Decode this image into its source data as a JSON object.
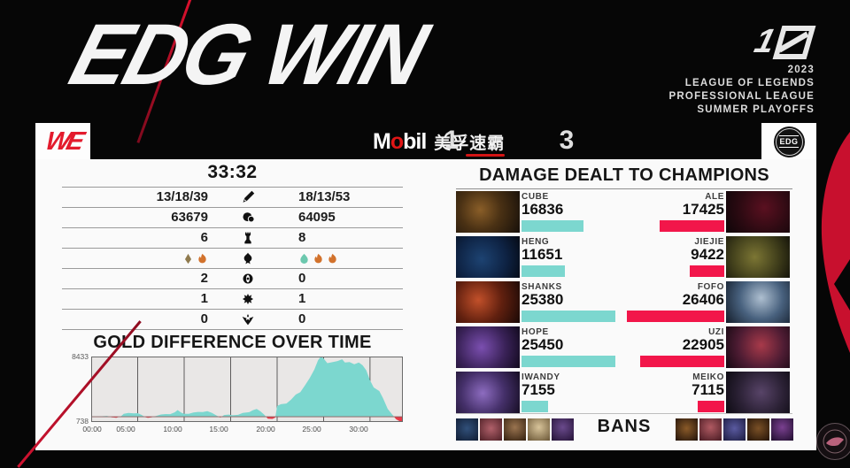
{
  "header": {
    "title": "EDG WIN",
    "anniversary_logo": "10",
    "event_lines": [
      "2023",
      "LEAGUE OF LEGENDS",
      "PROFESSIONAL LEAGUE",
      "SUMMER PLAYOFFS"
    ]
  },
  "scoreboard": {
    "left_team": "WE",
    "left_score": "1",
    "sponsor": {
      "m": "M",
      "o": "o",
      "bil": "bil",
      "cn": "美孚速霸"
    },
    "right_score": "3",
    "right_team": "EDG"
  },
  "match_stats": {
    "game_time": "33:32",
    "rows": [
      {
        "icon": "sword-icon",
        "stat": "kda",
        "left": "13/18/39",
        "right": "18/13/53"
      },
      {
        "icon": "gold-icon",
        "stat": "gold",
        "left": "63679",
        "right": "64095"
      },
      {
        "icon": "tower-icon",
        "stat": "towers",
        "left": "6",
        "right": "8"
      },
      {
        "icon": "dragon-icon",
        "stat": "drakes",
        "left_drakes": [
          "mountain",
          "infernal"
        ],
        "right_drakes": [
          "ocean",
          "infernal",
          "infernal"
        ]
      },
      {
        "icon": "herald-icon",
        "stat": "heralds",
        "left": "2",
        "right": "0"
      },
      {
        "icon": "baron-icon",
        "stat": "barons",
        "left": "1",
        "right": "1"
      },
      {
        "icon": "elder-icon",
        "stat": "elders",
        "left": "0",
        "right": "0"
      }
    ],
    "drake_colors": {
      "mountain": "#8f7a4e",
      "infernal": "#d2722c",
      "ocean": "#6cc8ae"
    }
  },
  "chart_data": {
    "type": "area",
    "title": "GOLD DIFFERENCE OVER TIME",
    "ylabel": "gold difference",
    "y_max_label": "8433",
    "y_min_label": "738",
    "ylim": [
      -738,
      8433
    ],
    "x_range_minutes": [
      0,
      33.53
    ],
    "x_ticks": [
      "00:00",
      "05:00",
      "10:00",
      "15:00",
      "20:00",
      "25:00",
      "30:00"
    ],
    "grid": true,
    "positive_color": "#7cd7cf",
    "negative_color": "#e83948",
    "points": [
      [
        0,
        30
      ],
      [
        1,
        60
      ],
      [
        1.7,
        120
      ],
      [
        2.2,
        -80
      ],
      [
        2.7,
        -140
      ],
      [
        3.2,
        60
      ],
      [
        3.5,
        420
      ],
      [
        4,
        520
      ],
      [
        4.6,
        480
      ],
      [
        5,
        500
      ],
      [
        5.4,
        260
      ],
      [
        5.8,
        -60
      ],
      [
        6.1,
        -160
      ],
      [
        6.5,
        -80
      ],
      [
        7,
        120
      ],
      [
        7.5,
        320
      ],
      [
        8,
        380
      ],
      [
        8.5,
        360
      ],
      [
        9,
        620
      ],
      [
        9.3,
        940
      ],
      [
        9.7,
        560
      ],
      [
        10,
        420
      ],
      [
        10.5,
        420
      ],
      [
        11,
        600
      ],
      [
        11.5,
        680
      ],
      [
        12,
        660
      ],
      [
        12.5,
        780
      ],
      [
        13,
        520
      ],
      [
        13.5,
        160
      ],
      [
        13.9,
        -120
      ],
      [
        14.3,
        240
      ],
      [
        14.8,
        300
      ],
      [
        15.2,
        200
      ],
      [
        15.8,
        260
      ],
      [
        16.3,
        520
      ],
      [
        17,
        640
      ],
      [
        17.4,
        920
      ],
      [
        17.8,
        1080
      ],
      [
        18.2,
        760
      ],
      [
        18.6,
        300
      ],
      [
        19,
        -280
      ],
      [
        19.5,
        -300
      ],
      [
        19.8,
        -120
      ],
      [
        20,
        1500
      ],
      [
        20.4,
        1750
      ],
      [
        21,
        1850
      ],
      [
        21.5,
        2400
      ],
      [
        22,
        3100
      ],
      [
        22.5,
        3450
      ],
      [
        23,
        4400
      ],
      [
        23.5,
        5400
      ],
      [
        24,
        6600
      ],
      [
        24.4,
        7900
      ],
      [
        24.7,
        8433
      ],
      [
        25,
        8150
      ],
      [
        25.4,
        7500
      ],
      [
        26,
        7650
      ],
      [
        26.5,
        7800
      ],
      [
        27,
        8050
      ],
      [
        27.3,
        7600
      ],
      [
        27.8,
        7650
      ],
      [
        28.3,
        7350
      ],
      [
        28.8,
        7600
      ],
      [
        29.2,
        7200
      ],
      [
        29.6,
        6500
      ],
      [
        30,
        5100
      ],
      [
        30.4,
        4100
      ],
      [
        31,
        3600
      ],
      [
        31.4,
        2600
      ],
      [
        31.9,
        1100
      ],
      [
        32.4,
        300
      ],
      [
        32.8,
        -350
      ],
      [
        33.2,
        -650
      ],
      [
        33.53,
        -738
      ]
    ]
  },
  "damage": {
    "title": "DAMAGE DEALT TO CHAMPIONS",
    "left_color": "#7cd7cf",
    "right_color": "#f2164a",
    "rows": [
      {
        "left_player": "CUBE",
        "left_value": 16836,
        "right_player": "ALE",
        "right_value": 17425
      },
      {
        "left_player": "HENG",
        "left_value": 11651,
        "right_player": "JIEJIE",
        "right_value": 9422
      },
      {
        "left_player": "SHANKS",
        "left_value": 25380,
        "right_player": "FOFO",
        "right_value": 26406
      },
      {
        "left_player": "HOPE",
        "left_value": 25450,
        "right_player": "UZI",
        "right_value": 22905
      },
      {
        "left_player": "IWANDY",
        "left_value": 7155,
        "right_player": "MEIKO",
        "right_value": 7115
      }
    ]
  },
  "bans": {
    "label": "BANS",
    "left_slots": 5,
    "right_slots": 5
  }
}
